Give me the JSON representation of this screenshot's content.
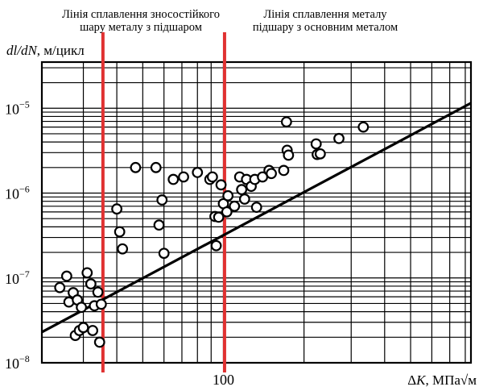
{
  "chart_data": {
    "type": "scatter",
    "title": "",
    "xlabel": "ΔK, МПа√м",
    "ylabel": "dl/dN, м/цикл",
    "x_scale": "log",
    "y_scale": "log",
    "xlim": [
      21,
      840
    ],
    "ylim": [
      1e-08,
      3.5e-05
    ],
    "grid": true,
    "x_ticks": [
      {
        "value": 100,
        "label": "100"
      }
    ],
    "y_ticks": [
      {
        "value": 1e-08,
        "label": "10−8"
      },
      {
        "value": 1e-07,
        "label": "10−7"
      },
      {
        "value": 1e-06,
        "label": "10−6"
      },
      {
        "value": 1e-05,
        "label": "10−5"
      }
    ],
    "vertical_lines": [
      {
        "x": 35.5,
        "label_lines": [
          "Лінія сплавлення зносостійкого",
          "шару металу з підшаром"
        ],
        "color": "#e03131"
      },
      {
        "x": 101,
        "label_lines": [
          "Лінія сплавлення металу",
          "підшару з основним металом"
        ],
        "color": "#e03131"
      }
    ],
    "fit_line": {
      "x": [
        21,
        840
      ],
      "y": [
        2.3e-08,
        1.15e-05
      ]
    },
    "points": [
      {
        "x": 24.5,
        "y": 7.7e-08
      },
      {
        "x": 26.0,
        "y": 1.05e-07
      },
      {
        "x": 26.5,
        "y": 5.2e-08
      },
      {
        "x": 27.5,
        "y": 6.7e-08
      },
      {
        "x": 28.0,
        "y": 2.1e-08
      },
      {
        "x": 28.5,
        "y": 5.5e-08
      },
      {
        "x": 29.0,
        "y": 2.4e-08
      },
      {
        "x": 29.5,
        "y": 4.5e-08
      },
      {
        "x": 30.0,
        "y": 2.6e-08
      },
      {
        "x": 31.0,
        "y": 1.15e-07
      },
      {
        "x": 32.0,
        "y": 8.5e-08
      },
      {
        "x": 32.5,
        "y": 2.4e-08
      },
      {
        "x": 33.0,
        "y": 4.7e-08
      },
      {
        "x": 34.0,
        "y": 6.8e-08
      },
      {
        "x": 34.5,
        "y": 1.75e-08
      },
      {
        "x": 35.0,
        "y": 4.9e-08
      },
      {
        "x": 40.0,
        "y": 6.5e-07
      },
      {
        "x": 41.0,
        "y": 3.5e-07
      },
      {
        "x": 42.0,
        "y": 2.2e-07
      },
      {
        "x": 47.0,
        "y": 2e-06
      },
      {
        "x": 56.0,
        "y": 2e-06
      },
      {
        "x": 57.5,
        "y": 4.2e-07
      },
      {
        "x": 59.0,
        "y": 8.3e-07
      },
      {
        "x": 60.0,
        "y": 1.95e-07
      },
      {
        "x": 65.0,
        "y": 1.45e-06
      },
      {
        "x": 71.0,
        "y": 1.55e-06
      },
      {
        "x": 80.0,
        "y": 1.75e-06
      },
      {
        "x": 89.0,
        "y": 1.45e-06
      },
      {
        "x": 91.0,
        "y": 1.55e-06
      },
      {
        "x": 93.0,
        "y": 5.3e-07
      },
      {
        "x": 94.0,
        "y": 2.4e-07
      },
      {
        "x": 96.0,
        "y": 5.2e-07
      },
      {
        "x": 98.0,
        "y": 1.25e-06
      },
      {
        "x": 100.0,
        "y": 7.5e-07
      },
      {
        "x": 103.0,
        "y": 6e-07
      },
      {
        "x": 104.0,
        "y": 9.3e-07
      },
      {
        "x": 110.0,
        "y": 7e-07
      },
      {
        "x": 115.0,
        "y": 1.55e-06
      },
      {
        "x": 117.0,
        "y": 1.1e-06
      },
      {
        "x": 120.0,
        "y": 8.5e-07
      },
      {
        "x": 122.0,
        "y": 1.45e-06
      },
      {
        "x": 127.0,
        "y": 1.2e-06
      },
      {
        "x": 131.0,
        "y": 1.45e-06
      },
      {
        "x": 133.0,
        "y": 6.8e-07
      },
      {
        "x": 140.0,
        "y": 1.55e-06
      },
      {
        "x": 148.0,
        "y": 1.85e-06
      },
      {
        "x": 151.0,
        "y": 1.7e-06
      },
      {
        "x": 168.0,
        "y": 1.85e-06
      },
      {
        "x": 172.0,
        "y": 6.9e-06
      },
      {
        "x": 173.0,
        "y": 3.2e-06
      },
      {
        "x": 175.0,
        "y": 2.8e-06
      },
      {
        "x": 222.0,
        "y": 3.8e-06
      },
      {
        "x": 224.0,
        "y": 2.85e-06
      },
      {
        "x": 230.0,
        "y": 2.9e-06
      },
      {
        "x": 270.0,
        "y": 4.4e-06
      },
      {
        "x": 333.0,
        "y": 6e-06
      }
    ]
  }
}
